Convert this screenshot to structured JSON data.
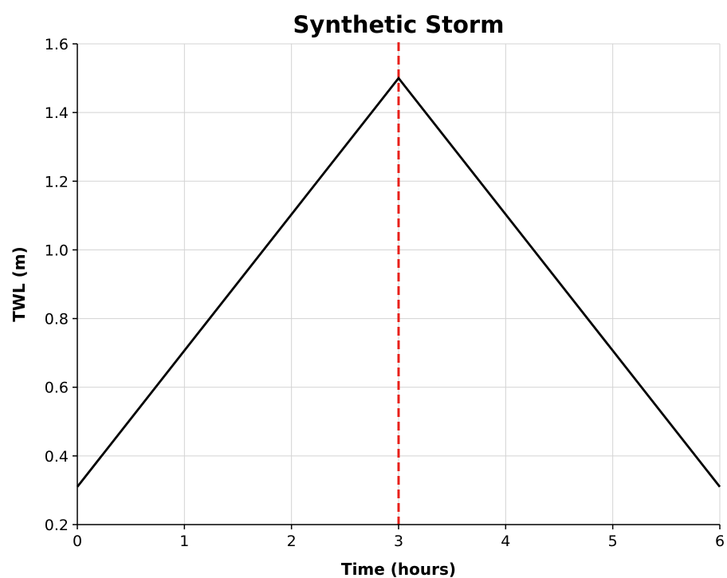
{
  "chart_data": {
    "type": "line",
    "title": "Synthetic Storm",
    "xlabel": "Time (hours)",
    "ylabel": "TWL (m)",
    "xlim": [
      0,
      6
    ],
    "ylim": [
      0.2,
      1.6
    ],
    "xticks": [
      0,
      1,
      2,
      3,
      4,
      5,
      6
    ],
    "yticks": [
      0.2,
      0.4,
      0.6,
      0.8,
      1.0,
      1.2,
      1.4,
      1.6
    ],
    "ytick_labels": [
      "0.2",
      "0.4",
      "0.6",
      "0.8",
      "1.0",
      "1.2",
      "1.4",
      "1.6"
    ],
    "xtick_labels": [
      "0",
      "1",
      "2",
      "3",
      "4",
      "5",
      "6"
    ],
    "grid": true,
    "series": [
      {
        "x": [
          0,
          3,
          6
        ],
        "y": [
          0.31,
          1.5,
          0.31
        ],
        "color": "#000000"
      }
    ],
    "vlines": [
      {
        "x": 3,
        "color": "#e8201a",
        "style": "dashed"
      }
    ]
  }
}
